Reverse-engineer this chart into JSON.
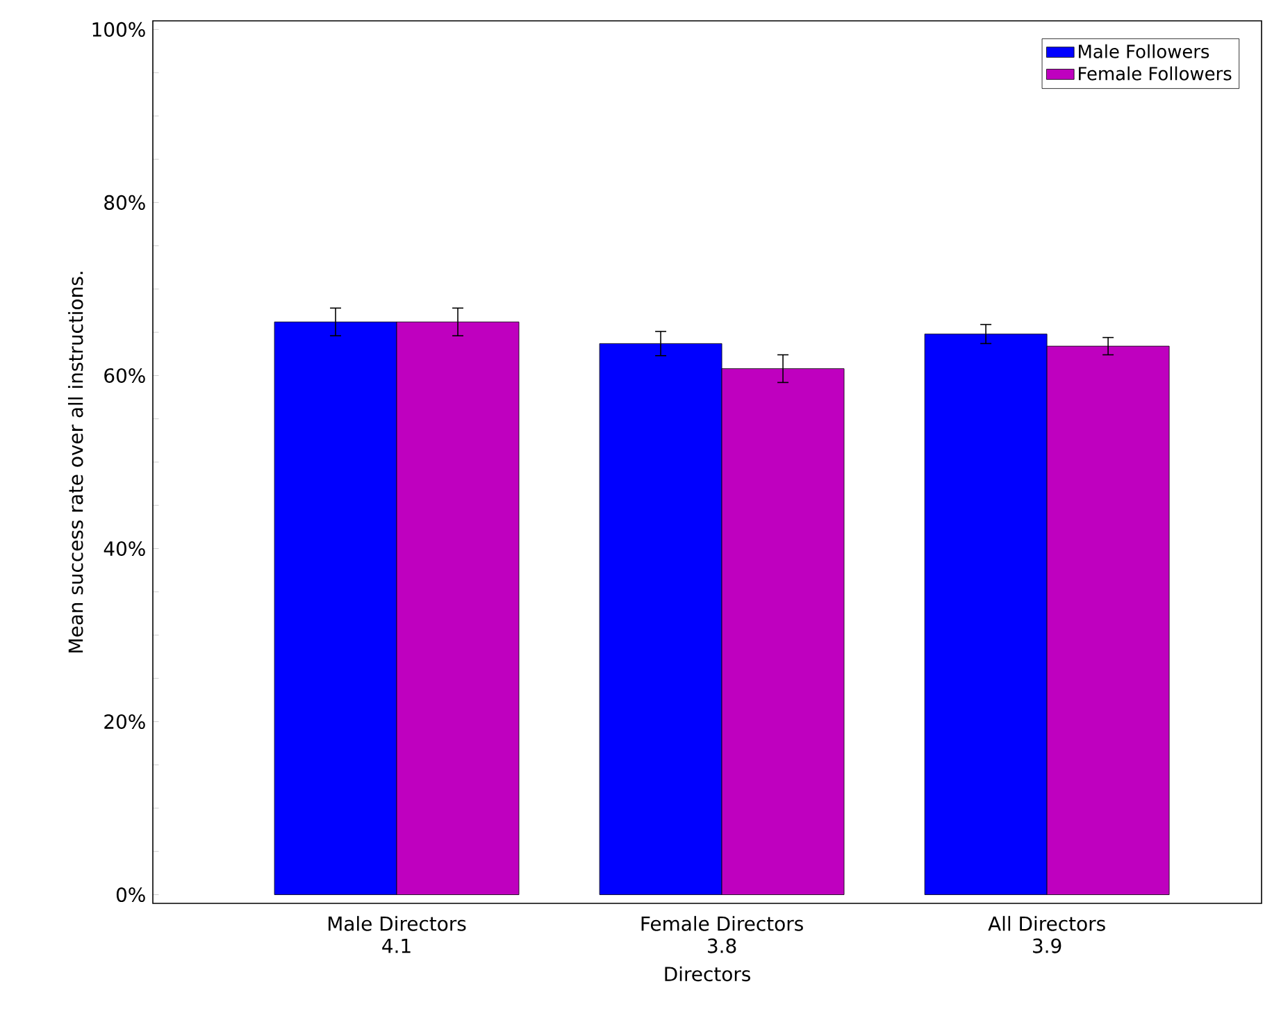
{
  "chart_data": {
    "type": "bar",
    "xlabel": "Directors",
    "ylabel": "Mean success rate over all instructions.",
    "categories": [
      "Male Directors 4.1",
      "Female Directors 3.8",
      "All Directors 3.9"
    ],
    "series": [
      {
        "name": "Male Followers",
        "color": "#0000ff",
        "values": [
          66.2,
          63.7,
          64.8
        ],
        "errors": [
          1.6,
          1.4,
          1.1
        ]
      },
      {
        "name": "Female Followers",
        "color": "#bf00bf",
        "values": [
          66.2,
          60.8,
          63.4
        ],
        "errors": [
          1.6,
          1.6,
          1.0
        ]
      }
    ],
    "ylim": [
      -1,
      101
    ],
    "yticks": [
      {
        "value": 0,
        "label": "0%"
      },
      {
        "value": 5,
        "label": null
      },
      {
        "value": 10,
        "label": null
      },
      {
        "value": 15,
        "label": null
      },
      {
        "value": 20,
        "label": "20%"
      },
      {
        "value": 25,
        "label": null
      },
      {
        "value": 30,
        "label": null
      },
      {
        "value": 35,
        "label": null
      },
      {
        "value": 40,
        "label": "40%"
      },
      {
        "value": 45,
        "label": null
      },
      {
        "value": 50,
        "label": null
      },
      {
        "value": 55,
        "label": null
      },
      {
        "value": 60,
        "label": "60%"
      },
      {
        "value": 65,
        "label": null
      },
      {
        "value": 70,
        "label": null
      },
      {
        "value": 75,
        "label": null
      },
      {
        "value": 80,
        "label": "80%"
      },
      {
        "value": 85,
        "label": null
      },
      {
        "value": 90,
        "label": null
      },
      {
        "value": 95,
        "label": null
      },
      {
        "value": 100,
        "label": "100%"
      }
    ],
    "legend": "top right"
  }
}
